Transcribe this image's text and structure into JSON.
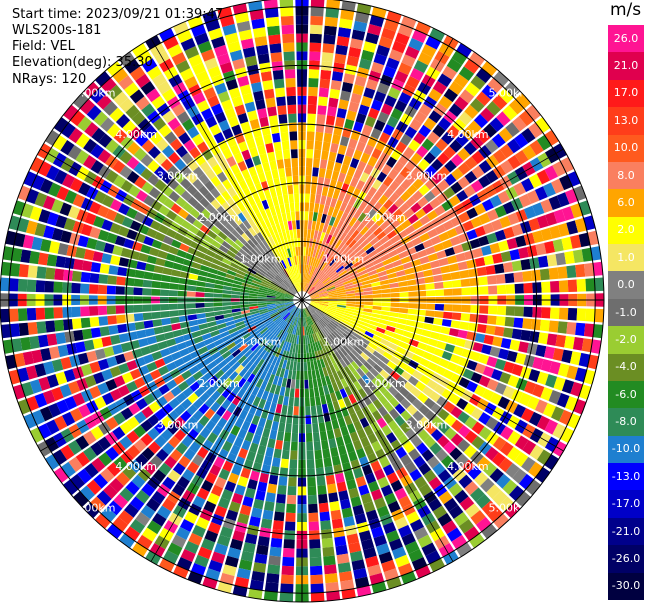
{
  "header": {
    "start_time": "Start time: 2023/09/21 01:39:47",
    "instrument": "WLS200s-181",
    "field": "Field: VEL",
    "elevation": "Elevation(deg): 35.30",
    "nrays": "NRays: 120"
  },
  "colorbar": {
    "title": "m/s",
    "labels": [
      "26.0",
      "21.0",
      "17.0",
      "13.0",
      "10.0",
      "8.0",
      "6.0",
      "2.0",
      "1.0",
      "0.0",
      "-1.0",
      "-2.0",
      "-4.0",
      "-6.0",
      "-8.0",
      "-10.0",
      "-13.0",
      "-17.0",
      "-21.0",
      "-26.0",
      "-30.0"
    ],
    "colors": [
      "#ff1493",
      "#e0004e",
      "#ff1a1a",
      "#ff3d1a",
      "#ff5a1e",
      "#fa7f5f",
      "#ffa500",
      "#ffff00",
      "#f5e663",
      "#808080",
      "#6e6e6e",
      "#9acd32",
      "#6b8e23",
      "#228b22",
      "#2e8b57",
      "#1e7fd0",
      "#0000ff",
      "#0000c8",
      "#00008b",
      "#000066",
      "#000040"
    ]
  },
  "chart_data": {
    "type": "heatmap",
    "title": "",
    "projection": "polar (PPI)",
    "nrays": 120,
    "range_rings_km": [
      1.0,
      2.0,
      3.0,
      4.0,
      5.0
    ],
    "ring_labels": [
      "1.00km",
      "2.00km",
      "3.00km",
      "4.00km",
      "5.00km"
    ],
    "field": "VEL",
    "units": "m/s",
    "value_range": [
      -30,
      26
    ],
    "pattern": "dipole: positive (orange/yellow) toward north and east, negative (green) toward south and west; noisy values beyond ~3 km"
  }
}
